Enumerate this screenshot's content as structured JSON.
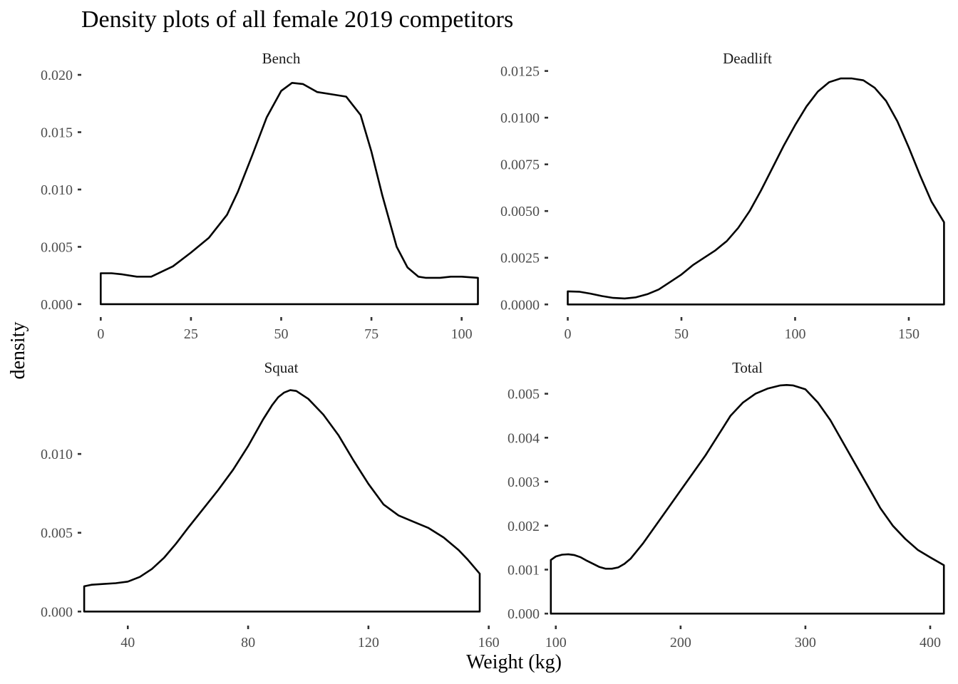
{
  "chart_data": {
    "type": "area",
    "title": "Density plots of all female 2019 competitors",
    "xlabel": "Weight (kg)",
    "ylabel": "density",
    "grid": false,
    "legend": "none",
    "colors": {
      "line": "#000000",
      "fill": "#ffffff"
    },
    "panels": [
      {
        "name": "Bench",
        "xlim": [
          -5,
          105
        ],
        "ylim": [
          -0.001,
          0.0205
        ],
        "xticks": [
          0,
          25,
          50,
          75,
          100
        ],
        "xtick_labels": [
          "0",
          "25",
          "50",
          "75",
          "100"
        ],
        "yticks": [
          0.0,
          0.005,
          0.01,
          0.015,
          0.02
        ],
        "ytick_labels": [
          "0.000",
          "0.005",
          "0.010",
          "0.015",
          "0.020"
        ],
        "x": [
          0,
          3,
          6,
          10,
          14,
          20,
          25,
          30,
          35,
          38,
          42,
          46,
          50,
          53,
          56,
          60,
          64,
          68,
          72,
          75,
          78,
          82,
          85,
          88,
          90,
          94,
          97,
          100,
          104.5
        ],
        "y": [
          0.0027,
          0.0027,
          0.0026,
          0.0024,
          0.0024,
          0.0033,
          0.0045,
          0.0058,
          0.0078,
          0.0098,
          0.013,
          0.0163,
          0.0186,
          0.0193,
          0.0192,
          0.0185,
          0.0183,
          0.0181,
          0.0165,
          0.0133,
          0.0095,
          0.005,
          0.0032,
          0.0024,
          0.0023,
          0.0023,
          0.0024,
          0.0024,
          0.0023
        ]
      },
      {
        "name": "Deadlift",
        "xlim": [
          -8,
          166
        ],
        "ylim": [
          -0.0006,
          0.0126
        ],
        "xticks": [
          0,
          50,
          100,
          150
        ],
        "xtick_labels": [
          "0",
          "50",
          "100",
          "150"
        ],
        "yticks": [
          0.0,
          0.0025,
          0.005,
          0.0075,
          0.01,
          0.0125
        ],
        "ytick_labels": [
          "0.0000",
          "0.0025",
          "0.0050",
          "0.0075",
          "0.0100",
          "0.0125"
        ],
        "x": [
          0,
          5,
          10,
          15,
          20,
          25,
          30,
          35,
          40,
          45,
          50,
          55,
          60,
          65,
          70,
          75,
          80,
          85,
          90,
          95,
          100,
          105,
          110,
          115,
          120,
          125,
          130,
          135,
          140,
          145,
          150,
          155,
          160,
          165.5
        ],
        "y": [
          0.0007,
          0.00068,
          0.00058,
          0.00045,
          0.00035,
          0.00032,
          0.00038,
          0.00055,
          0.0008,
          0.0012,
          0.0016,
          0.0021,
          0.0025,
          0.0029,
          0.0034,
          0.0041,
          0.005,
          0.0061,
          0.0073,
          0.0085,
          0.0096,
          0.0106,
          0.0114,
          0.0119,
          0.0121,
          0.0121,
          0.012,
          0.0116,
          0.0109,
          0.0098,
          0.0084,
          0.0069,
          0.0055,
          0.0044
        ]
      },
      {
        "name": "Squat",
        "xlim": [
          25,
          157
        ],
        "ylim": [
          -0.0008,
          0.0148
        ],
        "xticks": [
          40,
          80,
          120,
          160
        ],
        "xtick_labels": [
          "40",
          "80",
          "120",
          "160"
        ],
        "yticks": [
          0.0,
          0.005,
          0.01
        ],
        "ytick_labels": [
          "0.000",
          "0.005",
          "0.010"
        ],
        "x": [
          25.5,
          28,
          32,
          36,
          40,
          44,
          48,
          52,
          56,
          60,
          65,
          70,
          75,
          80,
          85,
          88,
          90,
          92,
          94,
          96,
          100,
          105,
          110,
          115,
          120,
          125,
          130,
          135,
          140,
          145,
          150,
          153,
          157
        ],
        "y": [
          0.0016,
          0.0017,
          0.00175,
          0.0018,
          0.0019,
          0.0022,
          0.0027,
          0.0034,
          0.0043,
          0.0053,
          0.0065,
          0.0077,
          0.009,
          0.0105,
          0.0122,
          0.0131,
          0.0136,
          0.0139,
          0.01405,
          0.014,
          0.0135,
          0.0125,
          0.0112,
          0.0096,
          0.0081,
          0.0068,
          0.0061,
          0.0057,
          0.0053,
          0.0047,
          0.0039,
          0.0033,
          0.0024
        ]
      },
      {
        "name": "Total",
        "xlim": [
          95,
          412
        ],
        "ylim": [
          -0.00024,
          0.00535
        ],
        "xticks": [
          100,
          200,
          300,
          400
        ],
        "xtick_labels": [
          "100",
          "200",
          "300",
          "400"
        ],
        "yticks": [
          0.0,
          0.001,
          0.002,
          0.003,
          0.004,
          0.005
        ],
        "ytick_labels": [
          "0.000",
          "0.001",
          "0.002",
          "0.003",
          "0.004",
          "0.005"
        ],
        "x": [
          96,
          100,
          105,
          110,
          115,
          120,
          125,
          130,
          135,
          140,
          145,
          150,
          155,
          160,
          170,
          180,
          190,
          200,
          210,
          220,
          230,
          240,
          250,
          260,
          270,
          280,
          285,
          290,
          300,
          310,
          320,
          330,
          340,
          350,
          360,
          370,
          380,
          390,
          400,
          411
        ],
        "y": [
          0.00122,
          0.0013,
          0.00134,
          0.00135,
          0.00133,
          0.00128,
          0.0012,
          0.00113,
          0.00106,
          0.00102,
          0.00102,
          0.00105,
          0.00113,
          0.00125,
          0.0016,
          0.002,
          0.0024,
          0.0028,
          0.0032,
          0.0036,
          0.00405,
          0.0045,
          0.0048,
          0.005,
          0.00512,
          0.00519,
          0.0052,
          0.00519,
          0.0051,
          0.0048,
          0.0044,
          0.0039,
          0.0034,
          0.0029,
          0.0024,
          0.002,
          0.0017,
          0.00145,
          0.00128,
          0.0011
        ]
      }
    ]
  }
}
